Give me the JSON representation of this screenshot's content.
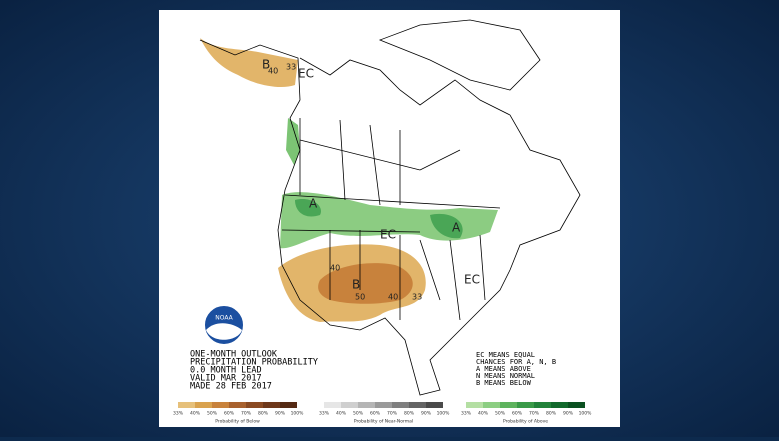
{
  "map": {
    "logo": "NOAA",
    "region_labels": [
      "B",
      "40",
      "33",
      "EC",
      "A",
      "EC",
      "A",
      "40",
      "B",
      "50",
      "40",
      "33",
      "EC"
    ],
    "title_lines": [
      "ONE-MONTH OUTLOOK",
      "PRECIPITATION PROBABILITY",
      "0.0 MONTH LEAD",
      "VALID MAR 2017",
      "MADE 28 FEB 2017"
    ],
    "key_lines": [
      "EC MEANS EQUAL",
      "CHANCES FOR A, N, B",
      "A MEANS ABOVE",
      "N MEANS NORMAL",
      "B MEANS BELOW"
    ],
    "legend_scales": [
      {
        "title": "Probability of Below",
        "ticks": [
          "33%",
          "40%",
          "50%",
          "60%",
          "70%",
          "80%",
          "90%",
          "100%"
        ],
        "colors": [
          "#e6c07a",
          "#d9a24e",
          "#c8823c",
          "#a8612e",
          "#8a4a22",
          "#6e381a",
          "#552a14"
        ]
      },
      {
        "title": "Probability of Near-Normal",
        "ticks": [
          "33%",
          "40%",
          "50%",
          "60%",
          "70%",
          "80%",
          "90%",
          "100%"
        ],
        "colors": [
          "#e6e6e6",
          "#cfcfcf",
          "#b5b5b5",
          "#9a9a9a",
          "#7f7f7f",
          "#646464",
          "#4a4a4a"
        ]
      },
      {
        "title": "Probability of Above",
        "ticks": [
          "33%",
          "40%",
          "50%",
          "60%",
          "70%",
          "80%",
          "90%",
          "100%"
        ],
        "colors": [
          "#b4dfa3",
          "#8cce82",
          "#5eb35e",
          "#3a9a48",
          "#22823a",
          "#12692c",
          "#0a5020"
        ]
      }
    ]
  }
}
